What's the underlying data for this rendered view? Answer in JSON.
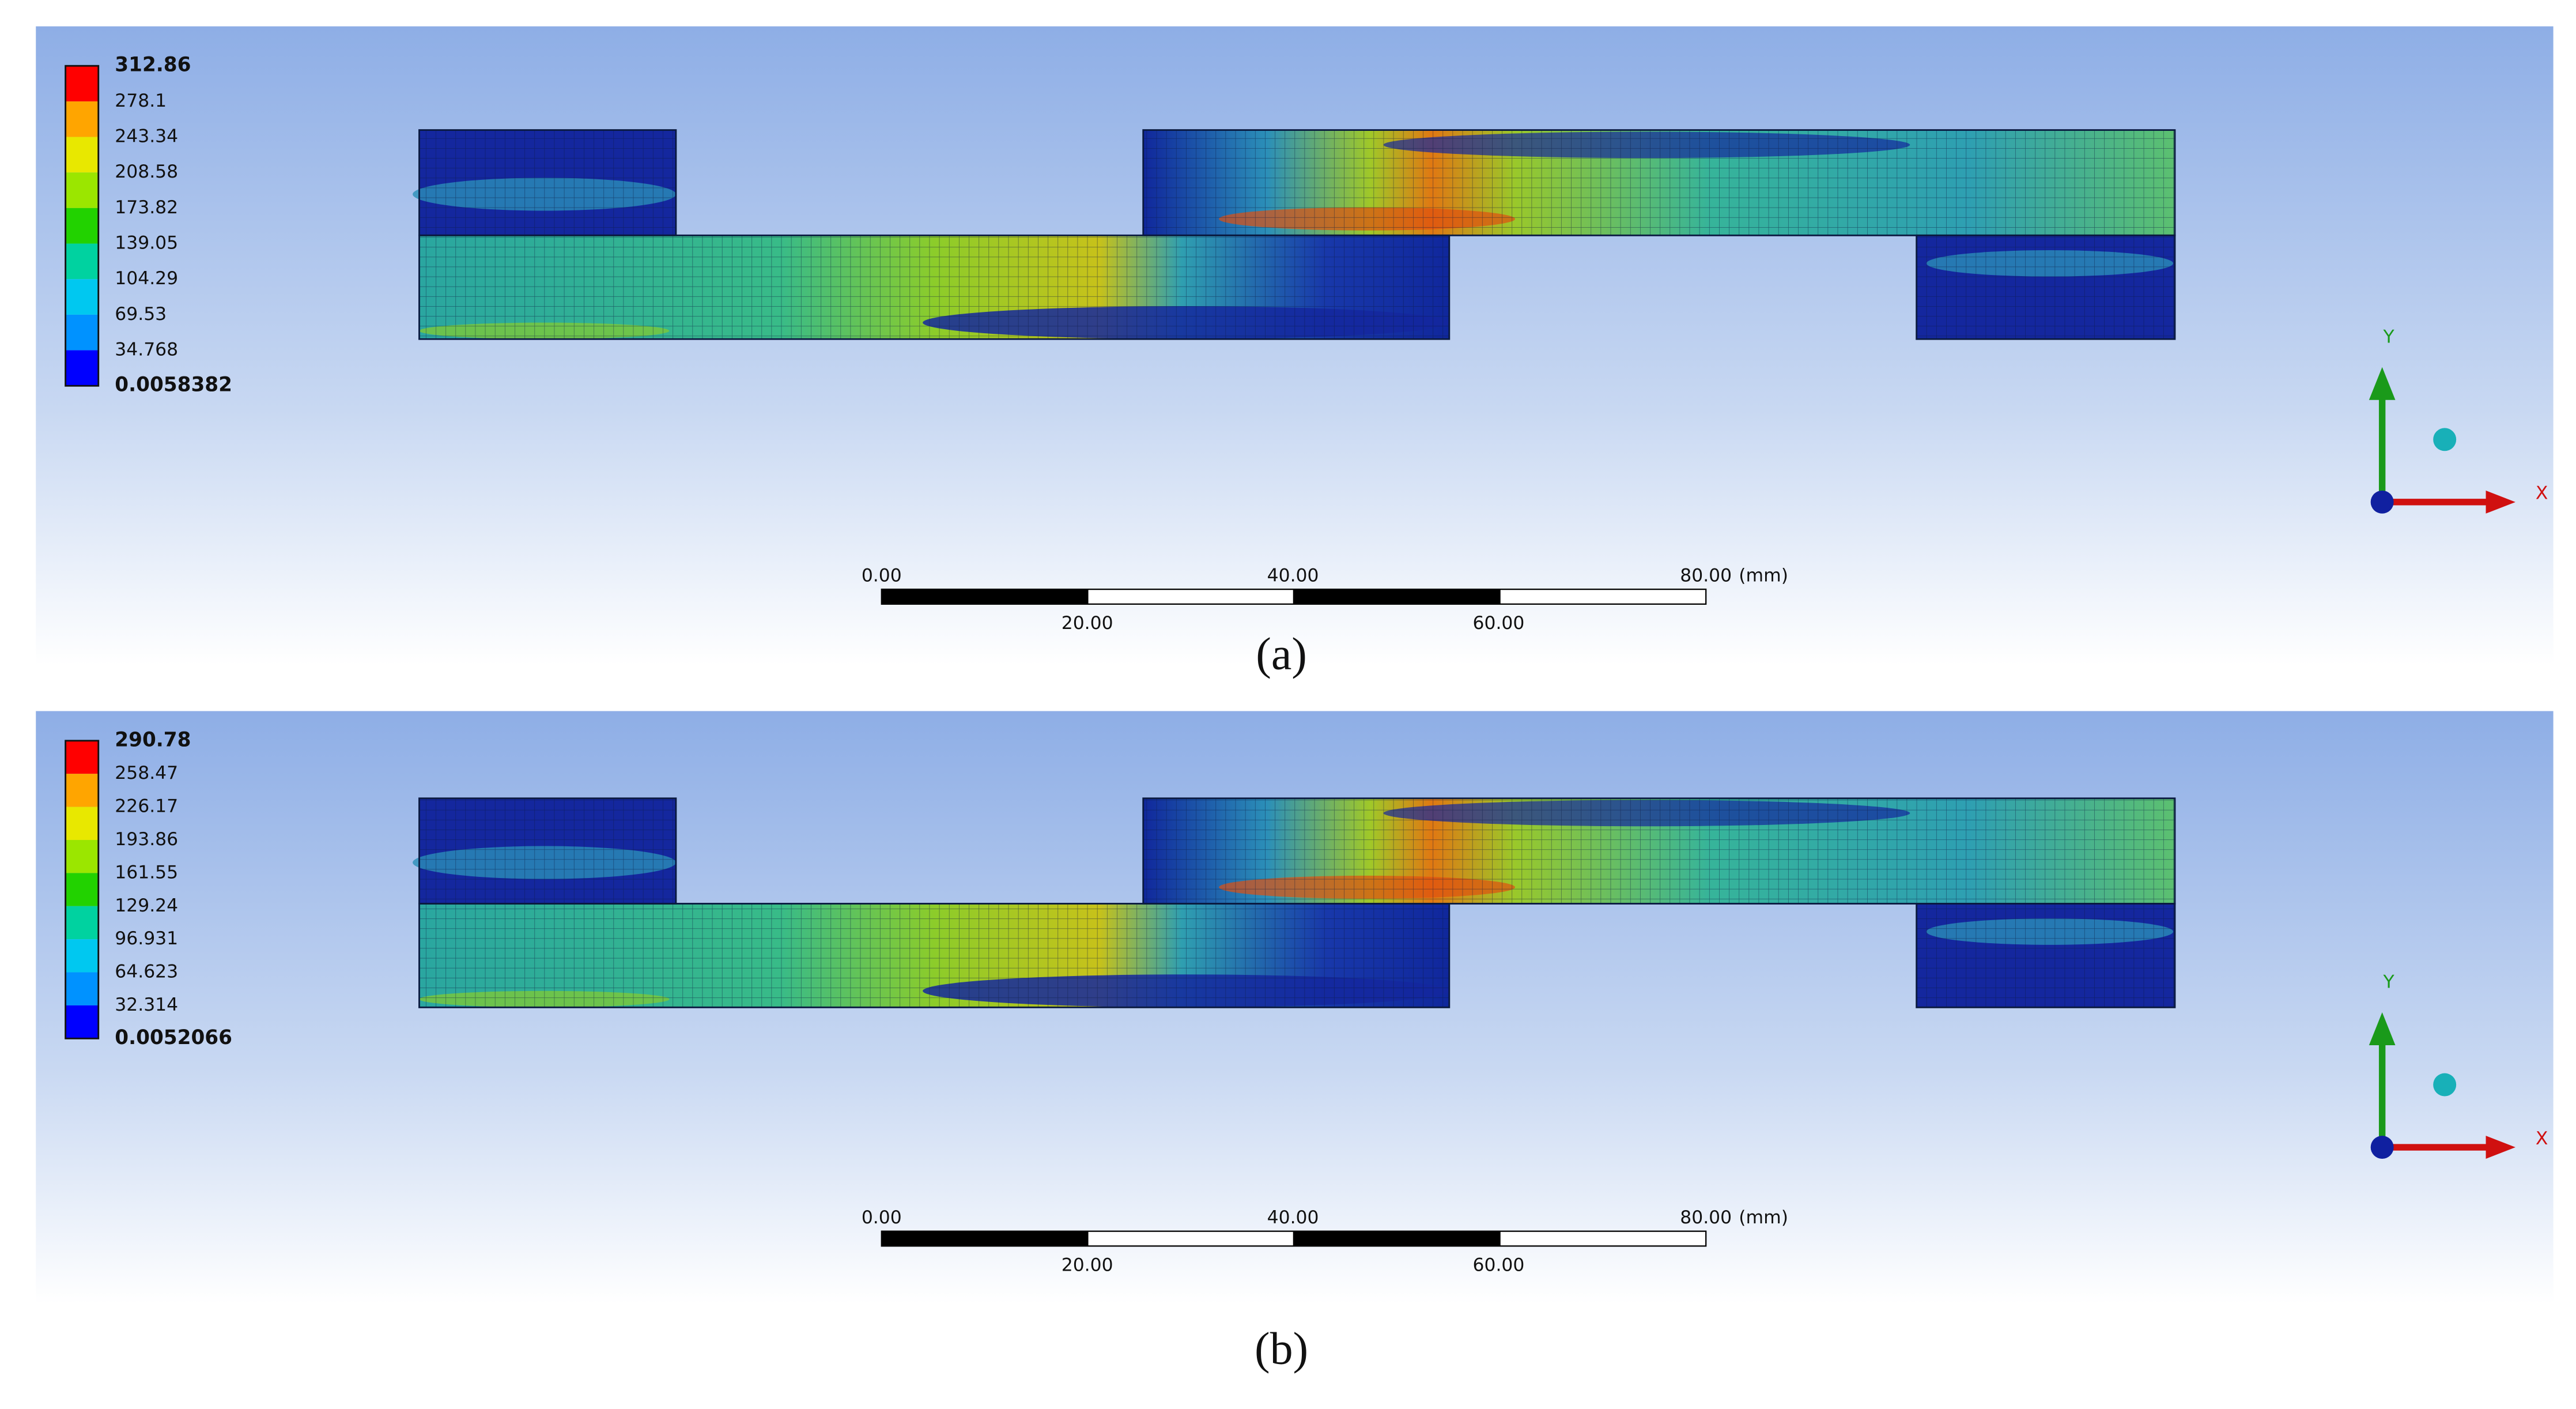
{
  "panels": [
    {
      "legend": {
        "values": [
          "312.86",
          "278.1",
          "243.34",
          "208.58",
          "173.82",
          "139.05",
          "104.29",
          "69.53",
          "34.768",
          "0.0058382"
        ]
      },
      "scale_bar": {
        "top_labels": [
          "0.00",
          "40.00",
          "80.00"
        ],
        "unit": "(mm)",
        "bottom_labels": [
          "20.00",
          "60.00"
        ]
      },
      "axes": {
        "y": "Y",
        "x": "X"
      },
      "caption": "(a)"
    },
    {
      "legend": {
        "values": [
          "290.78",
          "258.47",
          "226.17",
          "193.86",
          "161.55",
          "129.24",
          "96.931",
          "64.623",
          "32.314",
          "0.0052066"
        ]
      },
      "scale_bar": {
        "top_labels": [
          "0.00",
          "40.00",
          "80.00"
        ],
        "unit": "(mm)",
        "bottom_labels": [
          "20.00",
          "60.00"
        ]
      },
      "axes": {
        "y": "Y",
        "x": "X"
      },
      "caption": "(b)"
    }
  ]
}
